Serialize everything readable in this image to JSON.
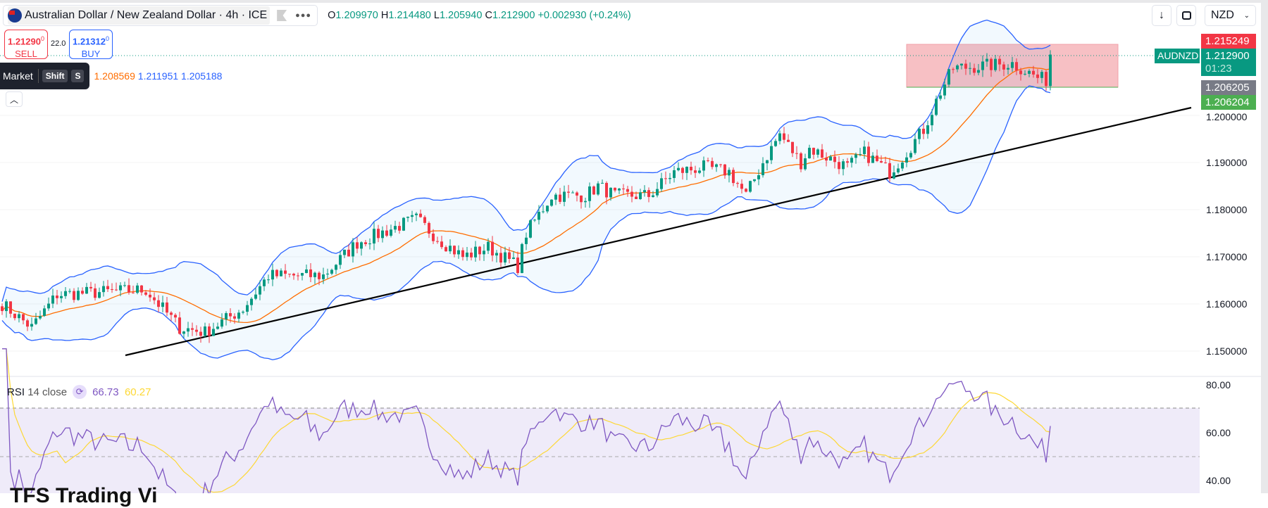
{
  "header": {
    "symbol_title": "Australian Dollar / New Zealand Dollar · 4h · ICE",
    "flag_icon": "australia-flag",
    "more_icon": "ellipsis-icon",
    "ohlc": {
      "o_label": "O",
      "o": "1.209970",
      "h_label": "H",
      "h": "1.214480",
      "l_label": "L",
      "l": "1.205940",
      "c_label": "C",
      "c": "1.212900",
      "change": "+0.002930 (+0.24%)"
    },
    "currency": "NZD"
  },
  "trade": {
    "sell_price": "1.21290",
    "sell_sup": "0",
    "sell_label": "SELL",
    "spread": "22.0",
    "buy_price": "1.21312",
    "buy_sup": "0",
    "buy_label": "BUY"
  },
  "tooltip": {
    "label": "Market",
    "key1": "Shift",
    "key2": "S"
  },
  "bollinger": {
    "basis": "1.208569",
    "upper": "1.211951",
    "lower": "1.205188"
  },
  "price_axis": {
    "ticks": [
      "1.200000",
      "1.190000",
      "1.180000",
      "1.170000",
      "1.160000",
      "1.150000"
    ],
    "tags": {
      "high": "1.215249",
      "symbol": "AUDNZD",
      "last": "1.212900",
      "countdown": "01:23",
      "grey": "1.206205",
      "green": "1.206204"
    }
  },
  "rsi": {
    "label": "RSI",
    "params": "14 close",
    "value": "66.73",
    "ma": "60.27",
    "ticks": [
      "80.00",
      "60.00",
      "40.00"
    ]
  },
  "watermark": "TFS Trading Vi",
  "colors": {
    "up": "#089981",
    "down": "#f23645",
    "band": "#2962ff",
    "basis": "#ff6d00",
    "rsi": "#7e57c2",
    "rsi_ma": "#fdd835",
    "zone": "#f7c0c4"
  },
  "price_path": [
    [
      0,
      1.16
    ],
    [
      7,
      1.155
    ],
    [
      13,
      1.162
    ],
    [
      34,
      1.163
    ],
    [
      42,
      1.155
    ],
    [
      48,
      1.154
    ],
    [
      57,
      1.159
    ],
    [
      63,
      1.166
    ],
    [
      76,
      1.166
    ],
    [
      84,
      1.173
    ],
    [
      95,
      1.177
    ],
    [
      98,
      1.178
    ],
    [
      103,
      1.174
    ],
    [
      109,
      1.17
    ],
    [
      115,
      1.172
    ],
    [
      122,
      1.168
    ],
    [
      124,
      1.175
    ],
    [
      130,
      1.183
    ],
    [
      138,
      1.183
    ],
    [
      141,
      1.185
    ],
    [
      145,
      1.183
    ],
    [
      153,
      1.183
    ],
    [
      159,
      1.188
    ],
    [
      166,
      1.189
    ],
    [
      172,
      1.188
    ],
    [
      176,
      1.183
    ],
    [
      180,
      1.19
    ],
    [
      184,
      1.196
    ],
    [
      189,
      1.19
    ],
    [
      191,
      1.193
    ],
    [
      200,
      1.189
    ],
    [
      204,
      1.192
    ],
    [
      210,
      1.188
    ],
    [
      212,
      1.19
    ],
    [
      218,
      1.197
    ],
    [
      222,
      1.205
    ],
    [
      225,
      1.21
    ],
    [
      239,
      1.211
    ],
    [
      245,
      1.208
    ],
    [
      247,
      1.2075
    ],
    [
      248,
      1.2129
    ]
  ]
}
